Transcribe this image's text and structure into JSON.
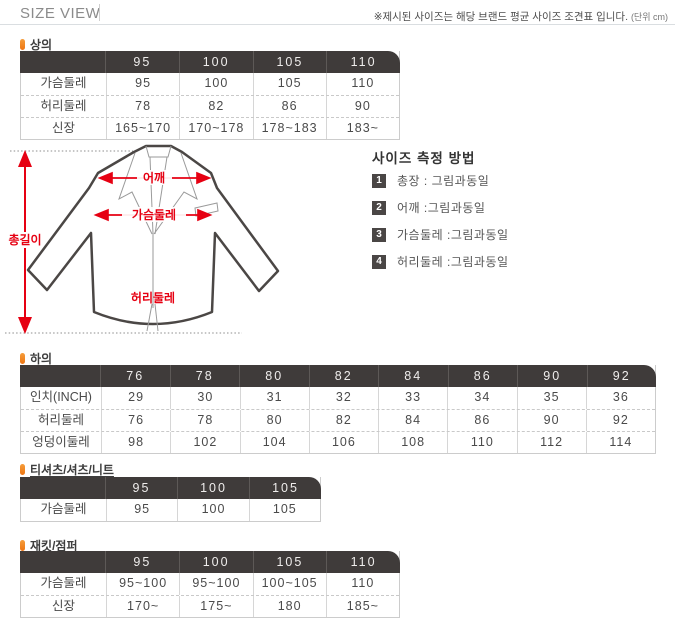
{
  "header": {
    "title": "SIZE VIEW",
    "note": "※제시된 사이즈는 해당 브랜드 평균 사이즈 조견표 입니다.",
    "note_unit": "(단위 cm)"
  },
  "tops": {
    "label": "상의",
    "table": {
      "columns": [
        "95",
        "100",
        "105",
        "110"
      ],
      "rows": [
        {
          "label": "가슴둘레",
          "values": [
            "95",
            "100",
            "105",
            "110"
          ]
        },
        {
          "label": "허리둘레",
          "values": [
            "78",
            "82",
            "86",
            "90"
          ]
        },
        {
          "label": "신장",
          "values": [
            "165~170",
            "170~178",
            "178~183",
            "183~"
          ]
        }
      ]
    }
  },
  "diagram": {
    "total_length_label": "총길이",
    "shoulder_label": "어깨",
    "chest_label": "가슴둘레",
    "waist_label": "허리둘레"
  },
  "measure_guide": {
    "title": "사이즈 측정 방법",
    "items": [
      {
        "num": "1",
        "text": "총장 : 그림과동일"
      },
      {
        "num": "2",
        "text": "어깨 :그림과동일"
      },
      {
        "num": "3",
        "text": "가슴둘레 :그림과동일"
      },
      {
        "num": "4",
        "text": "허리둘레 :그림과동일"
      }
    ]
  },
  "bottoms": {
    "label": "하의",
    "table": {
      "columns": [
        "76",
        "78",
        "80",
        "82",
        "84",
        "86",
        "90",
        "92"
      ],
      "rows": [
        {
          "label": "인치(INCH)",
          "values": [
            "29",
            "30",
            "31",
            "32",
            "33",
            "34",
            "35",
            "36"
          ]
        },
        {
          "label": "허리둘레",
          "values": [
            "76",
            "78",
            "80",
            "82",
            "84",
            "86",
            "90",
            "92"
          ]
        },
        {
          "label": "엉덩이둘레",
          "values": [
            "98",
            "102",
            "104",
            "106",
            "108",
            "110",
            "112",
            "114"
          ]
        }
      ]
    }
  },
  "tshirts": {
    "label": "티셔츠/셔츠/니트",
    "table": {
      "columns": [
        "95",
        "100",
        "105"
      ],
      "rows": [
        {
          "label": "가슴둘레",
          "values": [
            "95",
            "100",
            "105"
          ]
        }
      ]
    }
  },
  "jackets": {
    "label": "재킷/점퍼",
    "table": {
      "columns": [
        "95",
        "100",
        "105",
        "110"
      ],
      "rows": [
        {
          "label": "가슴둘레",
          "values": [
            "95~100",
            "95~100",
            "100~105",
            "110"
          ]
        },
        {
          "label": "신장",
          "values": [
            "170~",
            "175~",
            "180",
            "185~"
          ]
        }
      ]
    }
  },
  "colors": {
    "table_header_bg": "#3f3b3a",
    "accent_orange": "#ee7511",
    "arrow_red": "#e60012"
  }
}
